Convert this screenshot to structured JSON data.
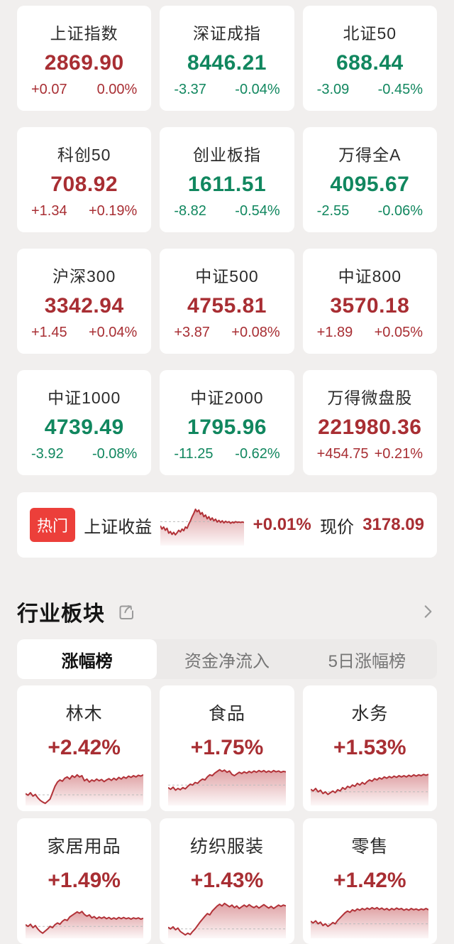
{
  "colors": {
    "up": "#a82e33",
    "down": "#11875f",
    "badge_bg": "#ec3f3a",
    "spark_line": "#b23238",
    "spark_fill": "#c0464c",
    "spark_baseline": "#bbbbbb"
  },
  "index_grid": {
    "cards": [
      {
        "name": "上证指数",
        "price": "2869.90",
        "change": "+0.07",
        "change_pct": "0.00%",
        "direction": "up"
      },
      {
        "name": "深证成指",
        "price": "8446.21",
        "change": "-3.37",
        "change_pct": "-0.04%",
        "direction": "down"
      },
      {
        "name": "北证50",
        "price": "688.44",
        "change": "-3.09",
        "change_pct": "-0.45%",
        "direction": "down"
      },
      {
        "name": "科创50",
        "price": "708.92",
        "change": "+1.34",
        "change_pct": "+0.19%",
        "direction": "up"
      },
      {
        "name": "创业板指",
        "price": "1611.51",
        "change": "-8.82",
        "change_pct": "-0.54%",
        "direction": "down"
      },
      {
        "name": "万得全A",
        "price": "4095.67",
        "change": "-2.55",
        "change_pct": "-0.06%",
        "direction": "down"
      },
      {
        "name": "沪深300",
        "price": "3342.94",
        "change": "+1.45",
        "change_pct": "+0.04%",
        "direction": "up"
      },
      {
        "name": "中证500",
        "price": "4755.81",
        "change": "+3.87",
        "change_pct": "+0.08%",
        "direction": "up"
      },
      {
        "name": "中证800",
        "price": "3570.18",
        "change": "+1.89",
        "change_pct": "+0.05%",
        "direction": "up"
      },
      {
        "name": "中证1000",
        "price": "4739.49",
        "change": "-3.92",
        "change_pct": "-0.08%",
        "direction": "down"
      },
      {
        "name": "中证2000",
        "price": "1795.96",
        "change": "-11.25",
        "change_pct": "-0.62%",
        "direction": "down"
      },
      {
        "name": "万得微盘股",
        "price": "221980.36",
        "change": "+454.75",
        "change_pct": "+0.21%",
        "direction": "up"
      }
    ]
  },
  "hot": {
    "badge": "热门",
    "name": "上证收益",
    "change_pct": "+0.01%",
    "price_label": "现价",
    "price": "3178.09",
    "spark": {
      "baseline": 42,
      "y": [
        52,
        60,
        55,
        63,
        58,
        70,
        66,
        73,
        68,
        74,
        69,
        63,
        67,
        60,
        64,
        55,
        58,
        48,
        40,
        30,
        22,
        12,
        18,
        14,
        24,
        20,
        30,
        26,
        35,
        30,
        38,
        33,
        40,
        36,
        43,
        39,
        44,
        40,
        45,
        41,
        44,
        42,
        46,
        43,
        45,
        42,
        44,
        43,
        44,
        43,
        44
      ]
    }
  },
  "sector_section": {
    "title": "行业板块",
    "tabs": [
      {
        "label": "涨幅榜",
        "active": true
      },
      {
        "label": "资金净流入",
        "active": false
      },
      {
        "label": "5日涨幅榜",
        "active": false
      }
    ],
    "cards": [
      {
        "name": "林木",
        "change_pct": "+2.42%",
        "spark": {
          "baseline": 75,
          "y": [
            72,
            76,
            70,
            78,
            74,
            82,
            88,
            92,
            95,
            90,
            85,
            70,
            55,
            45,
            40,
            43,
            36,
            33,
            38,
            30,
            34,
            28,
            33,
            30,
            42,
            38,
            45,
            40,
            43,
            38,
            42,
            39,
            44,
            40,
            37,
            41,
            36,
            40,
            34,
            38,
            33,
            36,
            31,
            34,
            30,
            33,
            29,
            31,
            28
          ]
        }
      },
      {
        "name": "食品",
        "change_pct": "+1.75%",
        "spark": {
          "baseline": 52,
          "y": [
            58,
            62,
            57,
            64,
            60,
            63,
            58,
            61,
            55,
            50,
            52,
            46,
            48,
            42,
            38,
            40,
            33,
            28,
            30,
            24,
            20,
            16,
            20,
            17,
            22,
            19,
            27,
            30,
            26,
            22,
            25,
            21,
            24,
            20,
            23,
            19,
            22,
            18,
            21,
            18,
            22,
            19,
            22,
            18,
            21,
            19,
            22,
            20,
            21
          ]
        }
      },
      {
        "name": "水务",
        "change_pct": "+1.53%",
        "spark": {
          "baseline": 68,
          "y": [
            62,
            66,
            60,
            68,
            64,
            72,
            68,
            74,
            70,
            66,
            70,
            63,
            66,
            58,
            62,
            55,
            58,
            52,
            55,
            48,
            52,
            46,
            50,
            44,
            40,
            43,
            37,
            40,
            35,
            38,
            33,
            36,
            32,
            35,
            31,
            34,
            30,
            33,
            30,
            33,
            29,
            32,
            28,
            31,
            28,
            30,
            27,
            29,
            27
          ]
        }
      },
      {
        "name": "家居用品",
        "change_pct": "+1.49%",
        "spark": {
          "baseline": 72,
          "y": [
            68,
            72,
            67,
            75,
            70,
            78,
            84,
            88,
            83,
            78,
            72,
            75,
            68,
            64,
            67,
            60,
            56,
            58,
            50,
            46,
            42,
            38,
            41,
            37,
            44,
            48,
            45,
            52,
            49,
            54,
            50,
            53,
            50,
            54,
            51,
            55,
            52,
            55,
            51,
            54,
            51,
            54,
            52,
            55,
            52,
            54,
            52,
            55,
            53
          ]
        }
      },
      {
        "name": "纺织服装",
        "change_pct": "+1.43%",
        "spark": {
          "baseline": 78,
          "y": [
            74,
            78,
            73,
            80,
            76,
            84,
            88,
            92,
            88,
            91,
            84,
            78,
            70,
            62,
            55,
            48,
            42,
            45,
            36,
            30,
            24,
            20,
            24,
            18,
            22,
            26,
            22,
            28,
            24,
            30,
            26,
            22,
            26,
            21,
            25,
            28,
            24,
            29,
            25,
            21,
            25,
            29,
            25,
            30,
            26,
            22,
            25,
            22,
            24
          ]
        }
      },
      {
        "name": "零售",
        "change_pct": "+1.42%",
        "spark": {
          "baseline": 66,
          "y": [
            60,
            64,
            59,
            66,
            62,
            70,
            66,
            72,
            68,
            63,
            66,
            58,
            52,
            46,
            40,
            36,
            39,
            33,
            36,
            31,
            34,
            30,
            33,
            29,
            32,
            28,
            31,
            28,
            32,
            29,
            33,
            30,
            34,
            30,
            33,
            29,
            32,
            30,
            34,
            31,
            34,
            30,
            33,
            31,
            34,
            31,
            33,
            30,
            33
          ]
        }
      }
    ]
  }
}
